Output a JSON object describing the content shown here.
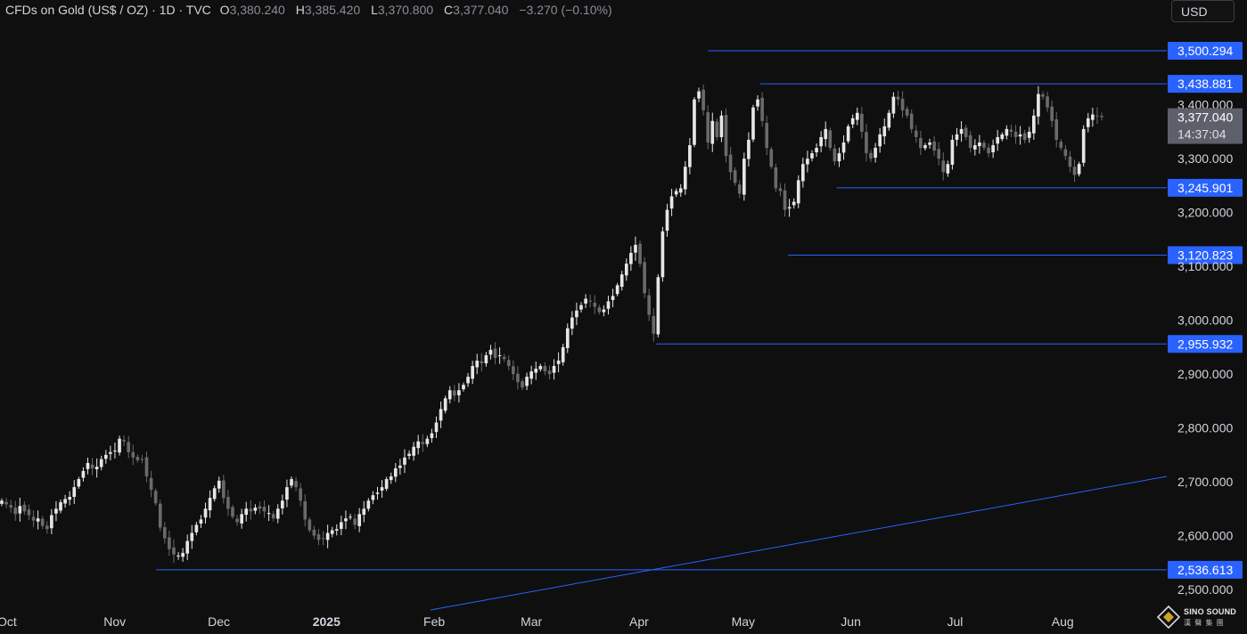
{
  "header": {
    "title": "CFDs on Gold (US$ / OZ) · 1D · TVC",
    "o_label": "O",
    "o_value": "3,380.240",
    "h_label": "H",
    "h_value": "3,385.420",
    "l_label": "L",
    "l_value": "3,370.800",
    "c_label": "C",
    "c_value": "3,377.040",
    "change": "−3.270 (−0.10%)"
  },
  "currency_button": "USD",
  "logo": {
    "line1": "SINO SOUND",
    "line2": "漢 聲 集 團"
  },
  "colors": {
    "background": "#0f0f0f",
    "candle_up": "#e6e6e6",
    "candle_down": "#6a6a6a",
    "level_line": "#2962ff",
    "level_label_bg": "#2962ff",
    "price_label_bg": "#5d606b",
    "axis_text": "#d1d4dc"
  },
  "chart_data": {
    "type": "candlestick",
    "y_range": [
      2462,
      3545
    ],
    "y_ticks": [
      {
        "value": 2500,
        "label": "2,500.000"
      },
      {
        "value": 2600,
        "label": "2,600.000"
      },
      {
        "value": 2700,
        "label": "2,700.000"
      },
      {
        "value": 2800,
        "label": "2,800.000"
      },
      {
        "value": 2900,
        "label": "2,900.000"
      },
      {
        "value": 3000,
        "label": "3,000.000"
      },
      {
        "value": 3100,
        "label": "3,100.000"
      },
      {
        "value": 3200,
        "label": "3,200.000"
      },
      {
        "value": 3300,
        "label": "3,300.000"
      },
      {
        "value": 3400,
        "label": "3,400.000"
      }
    ],
    "x_range": [
      "2024-09-30",
      "2025-09-01"
    ],
    "x_ticks": [
      {
        "date": "2024-10-01",
        "label": "Oct",
        "bold": false
      },
      {
        "date": "2024-11-01",
        "label": "Nov",
        "bold": false
      },
      {
        "date": "2024-12-01",
        "label": "Dec",
        "bold": false
      },
      {
        "date": "2025-01-01",
        "label": "2025",
        "bold": true
      },
      {
        "date": "2025-02-01",
        "label": "Feb",
        "bold": false
      },
      {
        "date": "2025-03-01",
        "label": "Mar",
        "bold": false
      },
      {
        "date": "2025-04-01",
        "label": "Apr",
        "bold": false
      },
      {
        "date": "2025-05-01",
        "label": "May",
        "bold": false
      },
      {
        "date": "2025-06-01",
        "label": "Jun",
        "bold": false
      },
      {
        "date": "2025-07-01",
        "label": "Jul",
        "bold": false
      },
      {
        "date": "2025-08-01",
        "label": "Aug",
        "bold": false
      }
    ],
    "horizontal_levels": [
      {
        "value": 3500.294,
        "label": "3,500.294",
        "from": "2025-04-22"
      },
      {
        "value": 3438.881,
        "label": "3,438.881",
        "from": "2025-05-07"
      },
      {
        "value": 3245.901,
        "label": "3,245.901",
        "from": "2025-05-29"
      },
      {
        "value": 3120.823,
        "label": "3,120.823",
        "from": "2025-05-15"
      },
      {
        "value": 2955.932,
        "label": "2,955.932",
        "from": "2025-04-07"
      },
      {
        "value": 2536.613,
        "label": "2,536.613",
        "from": "2024-11-14"
      }
    ],
    "trend_line": {
      "start": {
        "date": "2025-02-01",
        "value": 2462
      },
      "end": {
        "date": "2025-09-01",
        "value": 2710
      }
    },
    "last_price": {
      "value": 3377.04,
      "label": "3,377.040",
      "countdown": "14:37:04"
    },
    "closes": [
      2665,
      2658,
      2652,
      2640,
      2655,
      2645,
      2638,
      2628,
      2632,
      2618,
      2612,
      2638,
      2650,
      2662,
      2668,
      2672,
      2690,
      2705,
      2720,
      2735,
      2725,
      2728,
      2742,
      2750,
      2755,
      2758,
      2780,
      2775,
      2755,
      2745,
      2740,
      2742,
      2710,
      2685,
      2660,
      2615,
      2595,
      2575,
      2565,
      2563,
      2568,
      2590,
      2605,
      2620,
      2630,
      2650,
      2670,
      2688,
      2702,
      2670,
      2650,
      2635,
      2625,
      2640,
      2650,
      2645,
      2652,
      2650,
      2645,
      2642,
      2632,
      2650,
      2665,
      2690,
      2705,
      2690,
      2665,
      2630,
      2610,
      2600,
      2592,
      2595,
      2605,
      2610,
      2612,
      2625,
      2632,
      2635,
      2620,
      2640,
      2650,
      2665,
      2675,
      2680,
      2690,
      2705,
      2710,
      2725,
      2730,
      2745,
      2752,
      2765,
      2775,
      2770,
      2780,
      2790,
      2810,
      2835,
      2855,
      2870,
      2860,
      2870,
      2880,
      2895,
      2915,
      2925,
      2920,
      2935,
      2945,
      2930,
      2935,
      2928,
      2915,
      2900,
      2885,
      2875,
      2895,
      2905,
      2910,
      2915,
      2905,
      2900,
      2915,
      2925,
      2950,
      2985,
      3005,
      3018,
      3028,
      3040,
      3035,
      3025,
      3015,
      3020,
      3035,
      3045,
      3065,
      3085,
      3105,
      3125,
      3140,
      3105,
      3050,
      3010,
      2975,
      3080,
      3165,
      3205,
      3230,
      3240,
      3245,
      3285,
      3325,
      3410,
      3425,
      3390,
      3330,
      3370,
      3340,
      3380,
      3305,
      3275,
      3255,
      3235,
      3300,
      3335,
      3395,
      3410,
      3370,
      3320,
      3285,
      3245,
      3240,
      3205,
      3210,
      3220,
      3260,
      3290,
      3300,
      3310,
      3320,
      3340,
      3355,
      3320,
      3295,
      3310,
      3330,
      3360,
      3375,
      3385,
      3350,
      3310,
      3300,
      3320,
      3345,
      3360,
      3385,
      3415,
      3410,
      3390,
      3380,
      3355,
      3340,
      3320,
      3325,
      3330,
      3315,
      3300,
      3275,
      3290,
      3335,
      3345,
      3355,
      3340,
      3320,
      3325,
      3330,
      3320,
      3310,
      3325,
      3340,
      3345,
      3355,
      3350,
      3340,
      3345,
      3335,
      3350,
      3380,
      3420,
      3415,
      3395,
      3370,
      3335,
      3320,
      3305,
      3285,
      3270,
      3290,
      3355,
      3375,
      3382,
      3380,
      3377.04
    ]
  }
}
